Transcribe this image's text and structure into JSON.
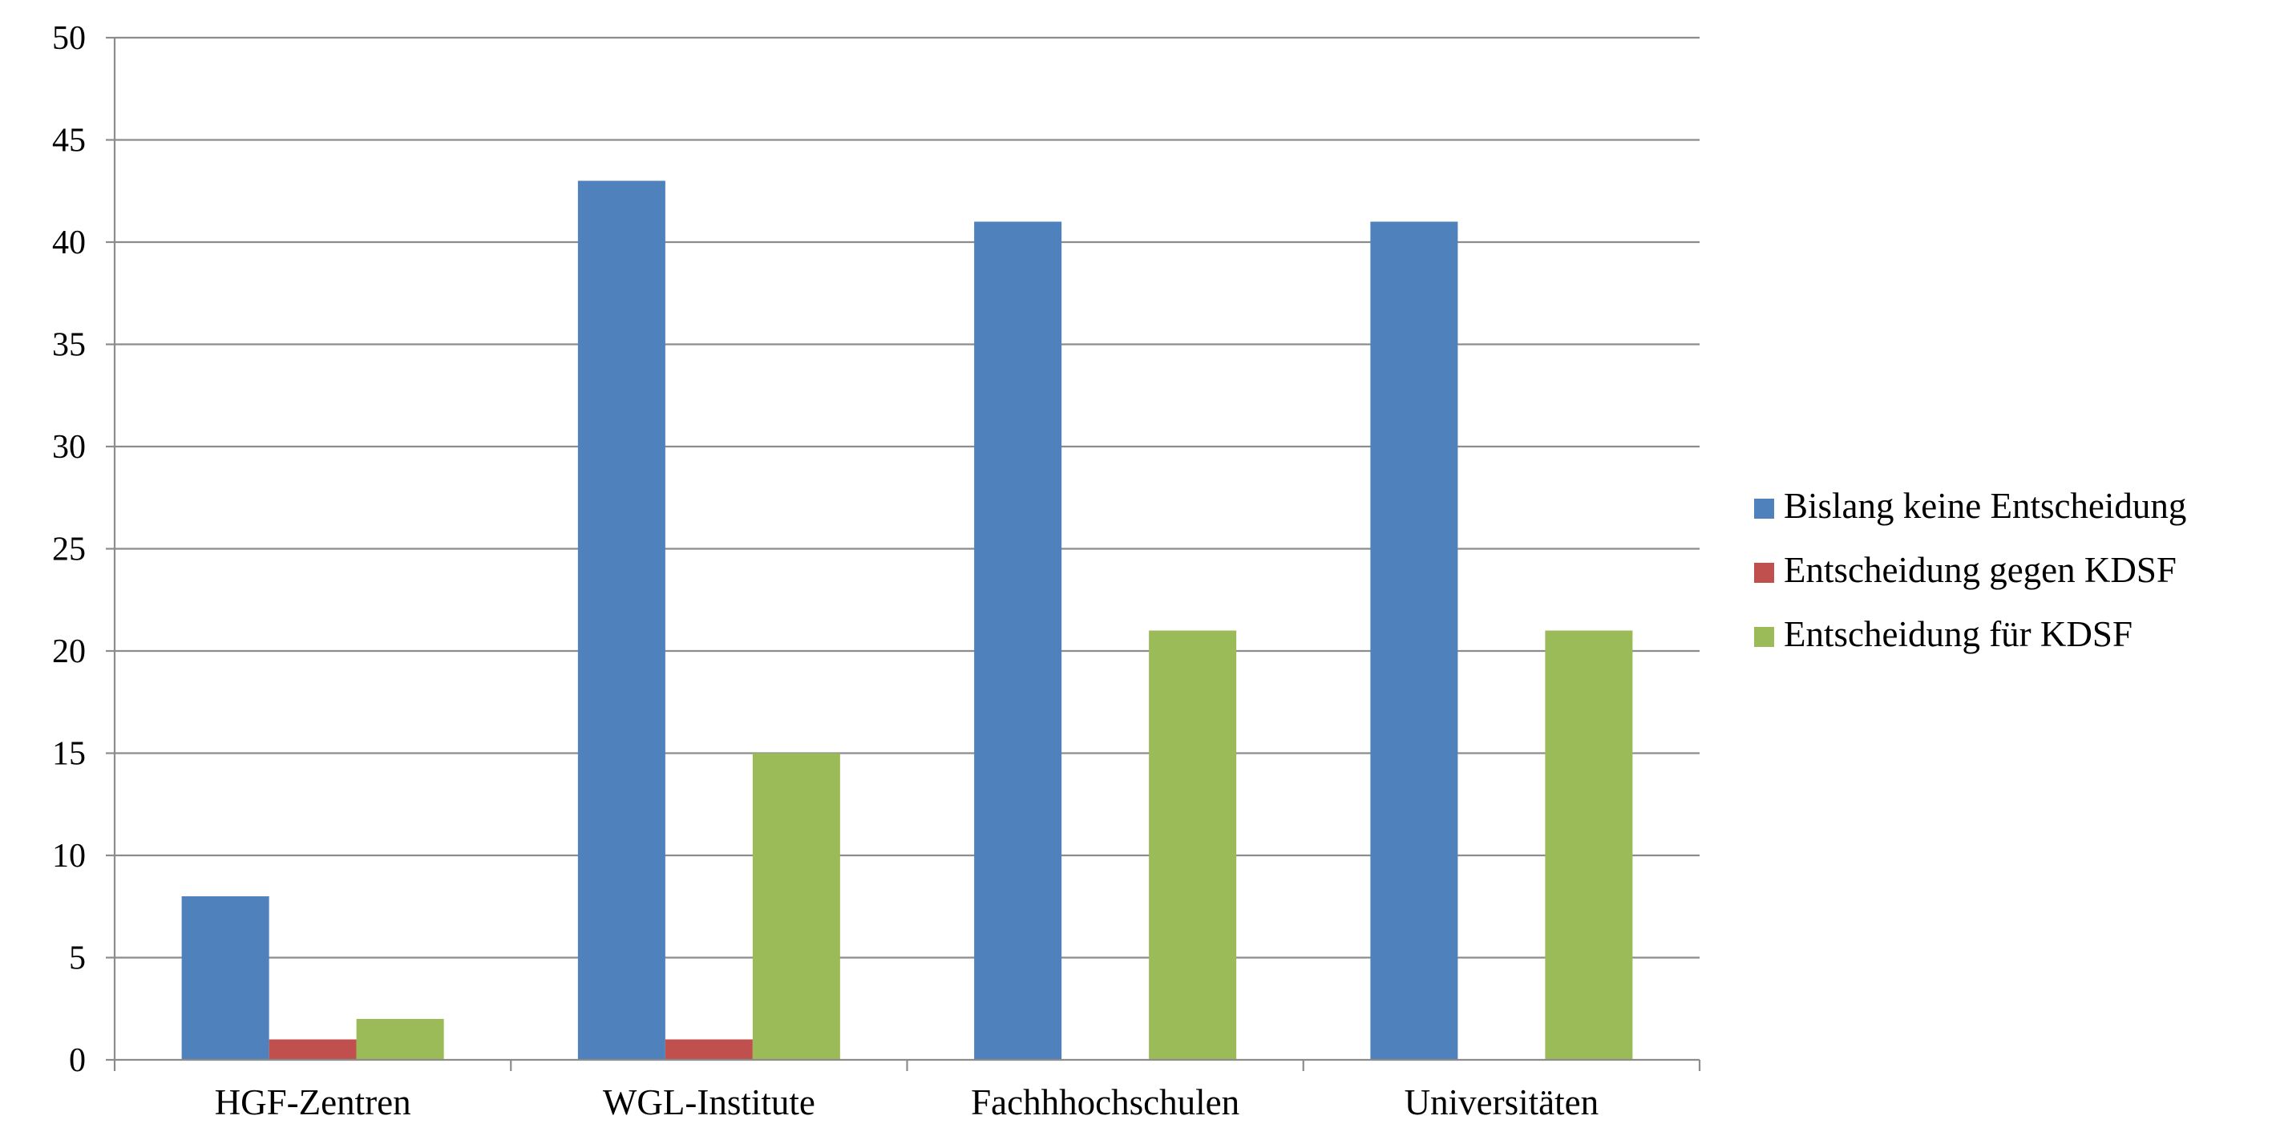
{
  "chart_data": {
    "type": "bar",
    "title": "",
    "xlabel": "",
    "ylabel": "",
    "categories": [
      "HGF-Zentren",
      "WGL-Institute",
      "Fachhhochschulen",
      "Universitäten"
    ],
    "series": [
      {
        "name": "Bislang keine Entscheidung",
        "values": [
          8,
          43,
          41,
          41
        ],
        "color": "#4F81BD"
      },
      {
        "name": "Entscheidung gegen KDSF",
        "values": [
          1,
          1,
          0,
          0
        ],
        "color": "#C0504D"
      },
      {
        "name": "Entscheidung für KDSF",
        "values": [
          2,
          15,
          21,
          21
        ],
        "color": "#9BBB59"
      }
    ],
    "ylim": [
      0,
      50
    ],
    "yticks": [
      0,
      5,
      10,
      15,
      20,
      25,
      30,
      35,
      40,
      45,
      50
    ],
    "grid": true,
    "legend": "right"
  }
}
